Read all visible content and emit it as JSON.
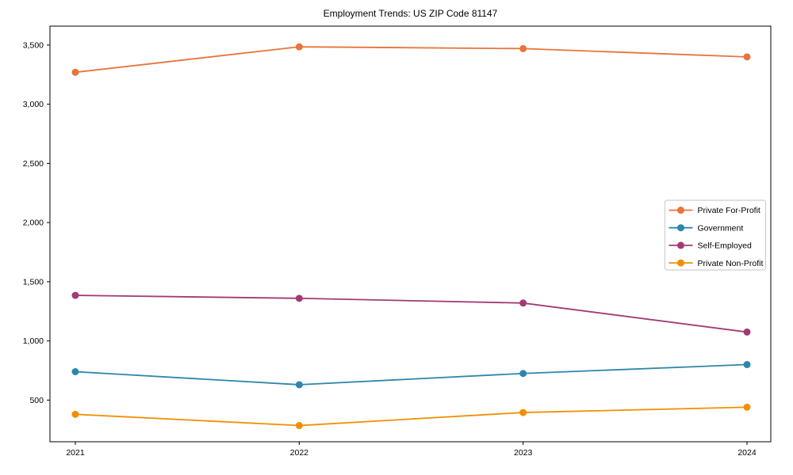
{
  "title": "Employment Trends: US ZIP Code 81147",
  "chart_data": {
    "type": "line",
    "title": "Employment Trends: US ZIP Code 81147",
    "xlabel": "",
    "ylabel": "",
    "x": [
      2021,
      2022,
      2023,
      2024
    ],
    "x_tick_labels": [
      "2021",
      "2022",
      "2023",
      "2024"
    ],
    "y_ticks": [
      500,
      1000,
      1500,
      2000,
      2500,
      3000,
      3500
    ],
    "y_tick_labels": [
      "500",
      "1,000",
      "1,500",
      "2,000",
      "2,500",
      "3,000",
      "3,500"
    ],
    "ylim": [
      148,
      3660
    ],
    "grid": false,
    "marker": "circle",
    "legend_position": "center-right",
    "series": [
      {
        "name": "Private For-Profit",
        "color": "#E8743B",
        "values": [
          3270,
          3485,
          3470,
          3400
        ]
      },
      {
        "name": "Government",
        "color": "#2E86AB",
        "values": [
          740,
          630,
          725,
          800
        ]
      },
      {
        "name": "Self-Employed",
        "color": "#A23B72",
        "values": [
          1385,
          1360,
          1320,
          1075
        ]
      },
      {
        "name": "Private Non-Profit",
        "color": "#F18F01",
        "values": [
          380,
          285,
          395,
          440
        ]
      }
    ]
  },
  "layout_colors": {
    "axis": "#000000",
    "legend_border": "#c2c2c2",
    "background": "#ffffff"
  }
}
